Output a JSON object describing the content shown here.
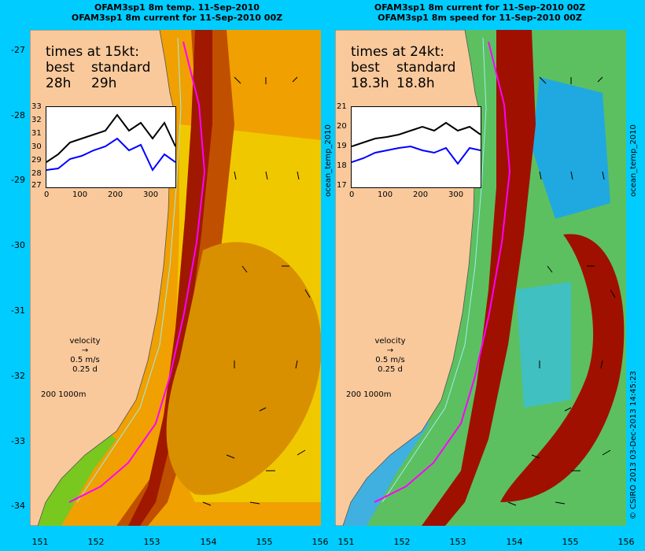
{
  "left_panel": {
    "title_line1": "OFAM3sp1 8m temp. 11-Sep-2010",
    "title_line2": "OFAM3sp1 8m current for 11-Sep-2010 00Z",
    "times_heading": "times at 15kt:",
    "best_label": "best",
    "standard_label": "standard",
    "best_value": "28h",
    "standard_value": "29h",
    "inset_yticks": [
      "33",
      "32",
      "31",
      "30",
      "29",
      "28",
      "27"
    ],
    "inset_xticks": [
      "0",
      "100",
      "200",
      "300"
    ],
    "side_label": "ocean_temp_2010"
  },
  "right_panel": {
    "title_line1": "OFAM3sp1 8m current for 11-Sep-2010 00Z",
    "title_line2": "OFAM3sp1 8m speed for 11-Sep-2010 00Z",
    "times_heading": "times at 24kt:",
    "best_label": "best",
    "standard_label": "standard",
    "best_value": "18.3h",
    "standard_value": "18.8h",
    "inset_yticks": [
      "21",
      "20",
      "19",
      "18",
      "17"
    ],
    "inset_xticks": [
      "0",
      "100",
      "200",
      "300"
    ],
    "side_label": "ocean_temp_2010"
  },
  "legend": {
    "velocity_label": "velocity",
    "velocity_value": "0.5 m/s",
    "velocity_time": "0.25 d",
    "scale_label": "200  1000m"
  },
  "y_axis_labels": [
    "-27",
    "-28",
    "-29",
    "-30",
    "-31",
    "-32",
    "-33",
    "-34"
  ],
  "x_axis_labels": [
    "151",
    "152",
    "153",
    "154",
    "155",
    "156"
  ],
  "credit": "© CSIRO 2013   03-Dec-2013 14:45:23",
  "colors": {
    "background": "#00ccff",
    "land": "#f9c99c",
    "route": "#ff00ff",
    "best_series": "#000000",
    "standard_series": "#0000ff"
  }
}
